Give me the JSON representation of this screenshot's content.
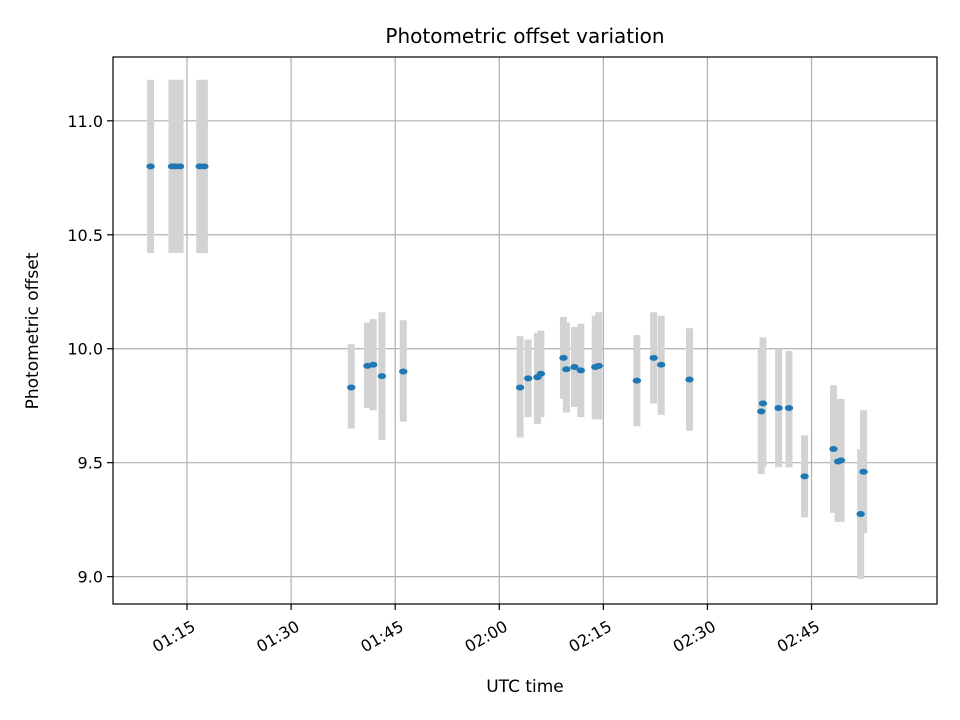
{
  "chart_data": {
    "type": "scatter",
    "title": "Photometric offset variation",
    "xlabel": "UTC time",
    "ylabel": "Photometric offset",
    "xlim": [
      "01:04:20",
      "03:03:05"
    ],
    "ylim": [
      8.88,
      11.28
    ],
    "xticks": [
      "01:15",
      "01:30",
      "01:45",
      "02:00",
      "02:15",
      "02:30",
      "02:45"
    ],
    "yticks": [
      "9.0",
      "9.5",
      "10.0",
      "10.5",
      "11.0"
    ],
    "grid": true,
    "colors": {
      "points": "#1f77b4",
      "errorbars": "#d3d3d3"
    },
    "points": [
      {
        "t": "01:09:45",
        "y": 10.8,
        "lo": 10.42,
        "hi": 11.18
      },
      {
        "t": "01:12:50",
        "y": 10.8,
        "lo": 10.42,
        "hi": 11.18
      },
      {
        "t": "01:13:20",
        "y": 10.8,
        "lo": 10.42,
        "hi": 11.18
      },
      {
        "t": "01:14:00",
        "y": 10.8,
        "lo": 10.42,
        "hi": 11.18
      },
      {
        "t": "01:16:50",
        "y": 10.8,
        "lo": 10.42,
        "hi": 11.18
      },
      {
        "t": "01:17:30",
        "y": 10.8,
        "lo": 10.42,
        "hi": 11.18
      },
      {
        "t": "01:38:40",
        "y": 9.83,
        "lo": 9.65,
        "hi": 10.02
      },
      {
        "t": "01:41:00",
        "y": 9.925,
        "lo": 9.74,
        "hi": 10.115
      },
      {
        "t": "01:41:50",
        "y": 9.93,
        "lo": 9.73,
        "hi": 10.13
      },
      {
        "t": "01:43:05",
        "y": 9.88,
        "lo": 9.6,
        "hi": 10.16
      },
      {
        "t": "01:46:10",
        "y": 9.9,
        "lo": 9.68,
        "hi": 10.125
      },
      {
        "t": "02:03:00",
        "y": 9.83,
        "lo": 9.61,
        "hi": 10.055
      },
      {
        "t": "02:04:10",
        "y": 9.87,
        "lo": 9.7,
        "hi": 10.04
      },
      {
        "t": "02:05:30",
        "y": 9.875,
        "lo": 9.67,
        "hi": 10.07
      },
      {
        "t": "02:06:00",
        "y": 9.89,
        "lo": 9.7,
        "hi": 10.08
      },
      {
        "t": "02:09:15",
        "y": 9.96,
        "lo": 9.78,
        "hi": 10.14
      },
      {
        "t": "02:09:40",
        "y": 9.91,
        "lo": 9.72,
        "hi": 10.115
      },
      {
        "t": "02:10:50",
        "y": 9.92,
        "lo": 9.745,
        "hi": 10.095
      },
      {
        "t": "02:11:45",
        "y": 9.905,
        "lo": 9.7,
        "hi": 10.11
      },
      {
        "t": "02:13:50",
        "y": 9.92,
        "lo": 9.69,
        "hi": 10.145
      },
      {
        "t": "02:14:20",
        "y": 9.925,
        "lo": 9.69,
        "hi": 10.16
      },
      {
        "t": "02:19:50",
        "y": 9.86,
        "lo": 9.66,
        "hi": 10.06
      },
      {
        "t": "02:22:15",
        "y": 9.96,
        "lo": 9.76,
        "hi": 10.16
      },
      {
        "t": "02:23:20",
        "y": 9.93,
        "lo": 9.71,
        "hi": 10.145
      },
      {
        "t": "02:27:25",
        "y": 9.865,
        "lo": 9.64,
        "hi": 10.09
      },
      {
        "t": "02:37:45",
        "y": 9.725,
        "lo": 9.45,
        "hi": 10.0
      },
      {
        "t": "02:38:00",
        "y": 9.76,
        "lo": 9.48,
        "hi": 10.05
      },
      {
        "t": "02:40:15",
        "y": 9.74,
        "lo": 9.48,
        "hi": 10.0
      },
      {
        "t": "02:41:45",
        "y": 9.74,
        "lo": 9.48,
        "hi": 9.99
      },
      {
        "t": "02:44:00",
        "y": 9.44,
        "lo": 9.26,
        "hi": 9.62
      },
      {
        "t": "02:48:10",
        "y": 9.56,
        "lo": 9.28,
        "hi": 9.84
      },
      {
        "t": "02:48:50",
        "y": 9.505,
        "lo": 9.24,
        "hi": 9.77
      },
      {
        "t": "02:49:15",
        "y": 9.51,
        "lo": 9.24,
        "hi": 9.78
      },
      {
        "t": "02:52:05",
        "y": 9.275,
        "lo": 8.99,
        "hi": 9.56
      },
      {
        "t": "02:52:30",
        "y": 9.46,
        "lo": 9.19,
        "hi": 9.73
      }
    ]
  }
}
